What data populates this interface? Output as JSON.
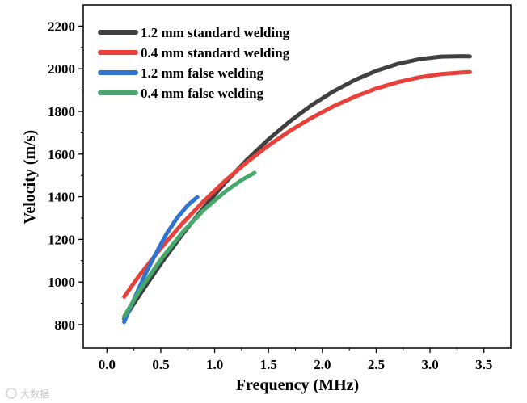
{
  "chart_data": {
    "type": "line",
    "title": "",
    "xlabel": "Frequency (MHz)",
    "ylabel": "Velocity (m/s)",
    "xlim": [
      -0.22,
      3.75
    ],
    "ylim": [
      690,
      2300
    ],
    "xticks": [
      0.0,
      0.5,
      1.0,
      1.5,
      2.0,
      2.5,
      3.0,
      3.5
    ],
    "xtick_labels": [
      "0.0",
      "0.5",
      "1.0",
      "1.5",
      "2.0",
      "2.5",
      "3.0",
      "3.5"
    ],
    "yticks": [
      800,
      1000,
      1200,
      1400,
      1600,
      1800,
      2000,
      2200
    ],
    "ytick_labels": [
      "800",
      "1000",
      "1200",
      "1400",
      "1600",
      "1800",
      "2000",
      "2200"
    ],
    "legend_position": "top-left",
    "series": [
      {
        "name": "1.2 mm standard welding",
        "color": "#404040",
        "x": [
          0.16,
          0.3,
          0.5,
          0.7,
          0.9,
          1.1,
          1.3,
          1.5,
          1.7,
          1.9,
          2.1,
          2.3,
          2.5,
          2.7,
          2.9,
          3.1,
          3.3,
          3.37
        ],
        "y": [
          828,
          937,
          1085,
          1223,
          1350,
          1467,
          1573,
          1669,
          1754,
          1829,
          1893,
          1947,
          1990,
          2023,
          2045,
          2057,
          2059,
          2058
        ]
      },
      {
        "name": "0.4 mm standard welding",
        "color": "#e8413b",
        "x": [
          0.16,
          0.3,
          0.5,
          0.7,
          0.9,
          1.1,
          1.3,
          1.5,
          1.7,
          1.9,
          2.1,
          2.3,
          2.5,
          2.7,
          2.9,
          3.1,
          3.3,
          3.37
        ],
        "y": [
          931,
          1030,
          1158,
          1275,
          1380,
          1476,
          1562,
          1640,
          1709,
          1770,
          1823,
          1869,
          1907,
          1937,
          1960,
          1975,
          1983,
          1985
        ]
      },
      {
        "name": "1.2 mm false welding",
        "color": "#2f74d0",
        "x": [
          0.16,
          0.25,
          0.35,
          0.45,
          0.55,
          0.65,
          0.75,
          0.84
        ],
        "y": [
          812,
          918,
          1031,
          1130,
          1223,
          1300,
          1360,
          1398
        ]
      },
      {
        "name": "0.4 mm false welding",
        "color": "#47a86e",
        "x": [
          0.16,
          0.3,
          0.5,
          0.7,
          0.9,
          1.1,
          1.25,
          1.37
        ],
        "y": [
          838,
          958,
          1106,
          1232,
          1338,
          1425,
          1478,
          1512
        ]
      }
    ]
  },
  "watermark": "大数据"
}
